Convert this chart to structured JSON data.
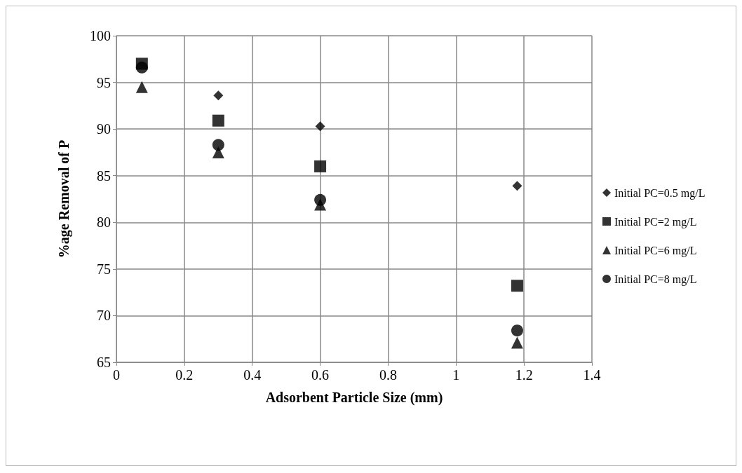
{
  "chart_data": {
    "type": "scatter",
    "xlabel": "Adsorbent Particle Size (mm)",
    "ylabel": "%age Removal of P",
    "x": [
      0.075,
      0.3,
      0.6,
      1.18
    ],
    "xlim": [
      0,
      1.4
    ],
    "xticks": [
      0,
      0.2,
      0.4,
      0.6,
      0.8,
      1,
      1.2,
      1.4
    ],
    "ylim": [
      65,
      100
    ],
    "yticks": [
      65,
      70,
      75,
      80,
      85,
      90,
      95,
      100
    ],
    "grid": true,
    "legend": "right",
    "series": [
      {
        "name": "Initial PC=0.5 mg/L",
        "color": "#000000",
        "marker": "diamond",
        "values": [
          null,
          93.6,
          90.3,
          83.9
        ]
      },
      {
        "name": "Initial PC=2 mg/L",
        "color": "#000000",
        "marker": "square",
        "values": [
          97.0,
          90.9,
          86.0,
          73.2
        ]
      },
      {
        "name": "Initial PC=6 mg/L",
        "color": "#000000",
        "marker": "triangle",
        "values": [
          94.5,
          87.5,
          81.9,
          67.1
        ]
      },
      {
        "name": "Initial PC=8 mg/L",
        "color": "#000000",
        "marker": "circle",
        "values": [
          96.6,
          88.3,
          82.4,
          68.4
        ]
      }
    ]
  }
}
